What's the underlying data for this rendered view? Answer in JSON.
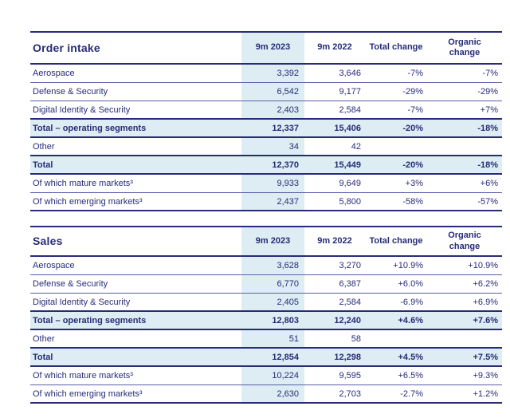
{
  "colors": {
    "text_navy": "#272c77",
    "highlight_blue": "#ddedf3",
    "thin_rule": "#5a60a8",
    "thick_rule": "#272c77"
  },
  "order_intake": {
    "title": "Order intake",
    "col_headers": [
      "9m 2023",
      "9m 2022",
      "Total change",
      "Organic change"
    ],
    "rows": [
      {
        "label": "Aerospace",
        "v1": "3,392",
        "v2": "3,646",
        "total_change": "-7%",
        "organic_change": "-7%"
      },
      {
        "label": "Defense & Security",
        "v1": "6,542",
        "v2": "9,177",
        "total_change": "-29%",
        "organic_change": "-29%"
      },
      {
        "label": "Digital Identity & Security",
        "v1": "2,403",
        "v2": "2,584",
        "total_change": "-7%",
        "organic_change": "+7%"
      },
      {
        "label": "Total – operating segments",
        "v1": "12,337",
        "v2": "15,406",
        "total_change": "-20%",
        "organic_change": "-18%"
      },
      {
        "label": "Other",
        "v1": "34",
        "v2": "42",
        "total_change": "",
        "organic_change": ""
      },
      {
        "label": "Total",
        "v1": "12,370",
        "v2": "15,449",
        "total_change": "-20%",
        "organic_change": "-18%"
      },
      {
        "label": "Of which mature markets³",
        "v1": "9,933",
        "v2": "9,649",
        "total_change": "+3%",
        "organic_change": "+6%"
      },
      {
        "label": "Of which emerging markets³",
        "v1": "2,437",
        "v2": "5,800",
        "total_change": "-58%",
        "organic_change": "-57%"
      }
    ]
  },
  "sales": {
    "title": "Sales",
    "col_headers": [
      "9m 2023",
      "9m 2022",
      "Total change",
      "Organic change"
    ],
    "rows": [
      {
        "label": "Aerospace",
        "v1": "3,628",
        "v2": "3,270",
        "total_change": "+10.9%",
        "organic_change": "+10.9%"
      },
      {
        "label": "Defense & Security",
        "v1": "6,770",
        "v2": "6,387",
        "total_change": "+6.0%",
        "organic_change": "+6.2%"
      },
      {
        "label": "Digital Identity & Security",
        "v1": "2,405",
        "v2": "2,584",
        "total_change": "-6.9%",
        "organic_change": "+6.9%"
      },
      {
        "label": "Total – operating segments",
        "v1": "12,803",
        "v2": "12,240",
        "total_change": "+4.6%",
        "organic_change": "+7.6%"
      },
      {
        "label": "Other",
        "v1": "51",
        "v2": "58",
        "total_change": "",
        "organic_change": ""
      },
      {
        "label": "Total",
        "v1": "12,854",
        "v2": "12,298",
        "total_change": "+4.5%",
        "organic_change": "+7.5%"
      },
      {
        "label": "Of which mature markets³",
        "v1": "10,224",
        "v2": "9,595",
        "total_change": "+6.5%",
        "organic_change": "+9.3%"
      },
      {
        "label": "Of which emerging markets³",
        "v1": "2,630",
        "v2": "2,703",
        "total_change": "-2.7%",
        "organic_change": "+1.2%"
      }
    ]
  }
}
